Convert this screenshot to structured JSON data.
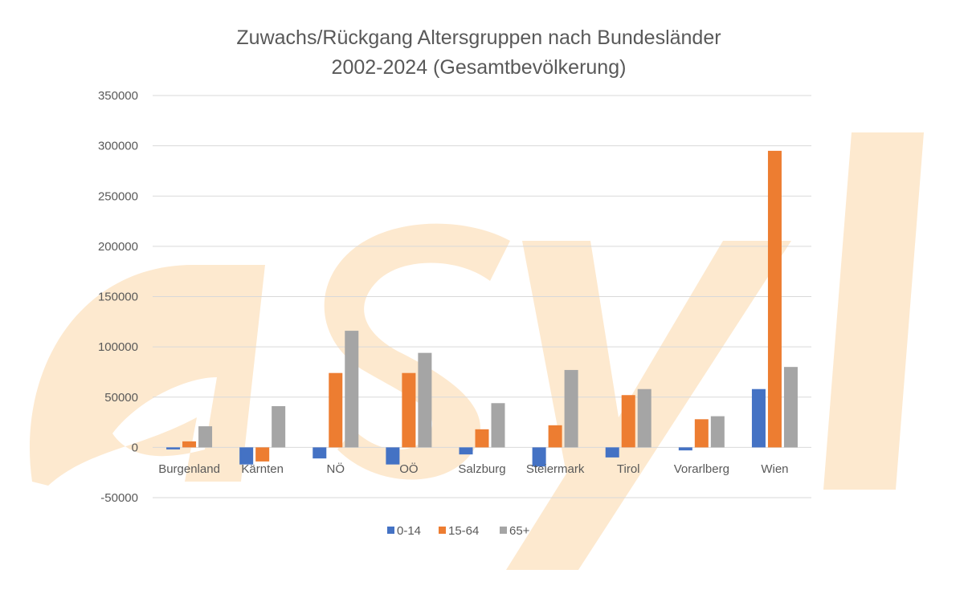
{
  "chart_data": {
    "type": "bar",
    "title": [
      "Zuwachs/Rückgang Altersgruppen nach Bundesländer",
      "2002-2024 (Gesamtbevölkerung)"
    ],
    "xlabel": "",
    "ylabel": "",
    "ylim": [
      -50000,
      350000
    ],
    "yticks": [
      350000,
      300000,
      250000,
      200000,
      150000,
      100000,
      50000,
      0,
      -50000
    ],
    "grid": true,
    "legend_position": "bottom",
    "categories": [
      "Burgenland",
      "Kärnten",
      "NÖ",
      "OÖ",
      "Salzburg",
      "Steiermark",
      "Tirol",
      "Vorarlberg",
      "Wien"
    ],
    "series": [
      {
        "name": "0-14",
        "color": "#4472C4",
        "values": [
          -2000,
          -17000,
          -11000,
          -17000,
          -7000,
          -19000,
          -10000,
          -3000,
          58000
        ]
      },
      {
        "name": "15-64",
        "color": "#ED7D31",
        "values": [
          6000,
          -14000,
          74000,
          74000,
          18000,
          22000,
          52000,
          28000,
          295000
        ]
      },
      {
        "name": "65+",
        "color": "#A5A5A5",
        "values": [
          21000,
          41000,
          116000,
          94000,
          44000,
          77000,
          58000,
          31000,
          80000
        ]
      }
    ]
  },
  "watermark": {
    "name": "asyl-watermark",
    "color": "#FDE9CF"
  }
}
